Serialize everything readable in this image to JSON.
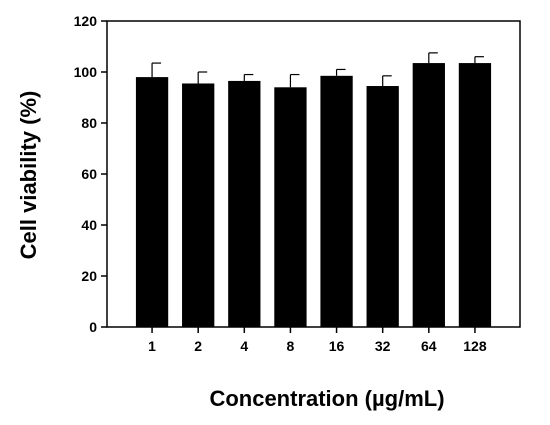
{
  "chart_data": {
    "type": "bar",
    "title": "",
    "xlabel": "Concentration (µg/mL)",
    "ylabel": "Cell viability (%)",
    "categories": [
      "1",
      "2",
      "4",
      "8",
      "16",
      "32",
      "64",
      "128"
    ],
    "values": [
      98,
      95.5,
      96.5,
      94,
      98.5,
      94.5,
      103.5,
      103.5
    ],
    "errors": [
      5.5,
      4.5,
      2.5,
      5,
      2.5,
      4,
      4,
      2.5
    ],
    "ylim": [
      0,
      120
    ],
    "yticks": [
      0,
      20,
      40,
      60,
      80,
      100,
      120
    ],
    "grid": false,
    "legend": "none",
    "colors": {
      "bar": "#000000",
      "axis": "#000000",
      "background": "#ffffff"
    }
  }
}
